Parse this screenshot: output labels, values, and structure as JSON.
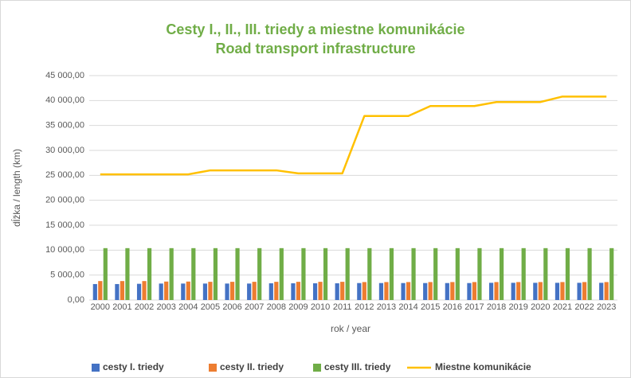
{
  "chart_data": {
    "type": "bar+line",
    "title": "Cesty I., II., III. triedy a miestne komunikácie",
    "subtitle": "Road transport infrastructure",
    "x_label": "rok / year",
    "y_label": "dĺžka / length (km)",
    "categories": [
      "2000",
      "2001",
      "2002",
      "2003",
      "2004",
      "2005",
      "2006",
      "2007",
      "2008",
      "2009",
      "2010",
      "2011",
      "2012",
      "2013",
      "2014",
      "2015",
      "2016",
      "2017",
      "2018",
      "2019",
      "2020",
      "2021",
      "2022",
      "2023"
    ],
    "series": [
      {
        "name": "cesty I. triedy",
        "type": "bar",
        "color": "#4472c4",
        "values": [
          3200,
          3200,
          3250,
          3300,
          3300,
          3300,
          3300,
          3300,
          3350,
          3350,
          3350,
          3350,
          3400,
          3400,
          3400,
          3400,
          3400,
          3400,
          3450,
          3450,
          3450,
          3450,
          3450,
          3450
        ]
      },
      {
        "name": "cesty II. triedy",
        "type": "bar",
        "color": "#ed7d31",
        "values": [
          3800,
          3800,
          3800,
          3700,
          3700,
          3650,
          3650,
          3650,
          3650,
          3650,
          3650,
          3650,
          3600,
          3600,
          3600,
          3600,
          3600,
          3600,
          3600,
          3600,
          3600,
          3600,
          3600,
          3600
        ]
      },
      {
        "name": "cesty III. triedy",
        "type": "bar",
        "color": "#70ad47",
        "values": [
          10400,
          10400,
          10400,
          10400,
          10400,
          10400,
          10400,
          10400,
          10400,
          10400,
          10400,
          10400,
          10400,
          10400,
          10400,
          10400,
          10400,
          10400,
          10400,
          10400,
          10400,
          10400,
          10400,
          10400
        ]
      },
      {
        "name": "Miestne komunikácie",
        "type": "line",
        "color": "#ffc000",
        "values": [
          25200,
          25200,
          25200,
          25200,
          25200,
          26000,
          26000,
          26000,
          26000,
          25400,
          25400,
          25400,
          36900,
          36900,
          36900,
          38900,
          38900,
          38900,
          39700,
          39700,
          39700,
          40800,
          40800,
          40800
        ]
      }
    ],
    "ylim": [
      0,
      45000
    ],
    "yticks": [
      {
        "value": 0,
        "label": "0,00"
      },
      {
        "value": 5000,
        "label": "5 000,00"
      },
      {
        "value": 10000,
        "label": "10 000,00"
      },
      {
        "value": 15000,
        "label": "15 000,00"
      },
      {
        "value": 20000,
        "label": "20 000,00"
      },
      {
        "value": 25000,
        "label": "25 000,00"
      },
      {
        "value": 30000,
        "label": "30 000,00"
      },
      {
        "value": 35000,
        "label": "35 000,00"
      },
      {
        "value": 40000,
        "label": "40 000,00"
      },
      {
        "value": 45000,
        "label": "45 000,00"
      }
    ],
    "grid": true,
    "legend": "bottom"
  }
}
